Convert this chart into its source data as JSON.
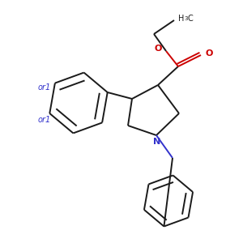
{
  "bg_color": "#ffffff",
  "bond_color": "#1a1a1a",
  "nitrogen_color": "#3333cc",
  "oxygen_color": "#cc0000",
  "line_width": 1.4,
  "or1_color": "#3333cc",
  "h3c_text": "H3C",
  "o_labels": [
    "O",
    "O"
  ],
  "n_label": "N",
  "or1_labels": [
    "or1",
    "or1"
  ]
}
